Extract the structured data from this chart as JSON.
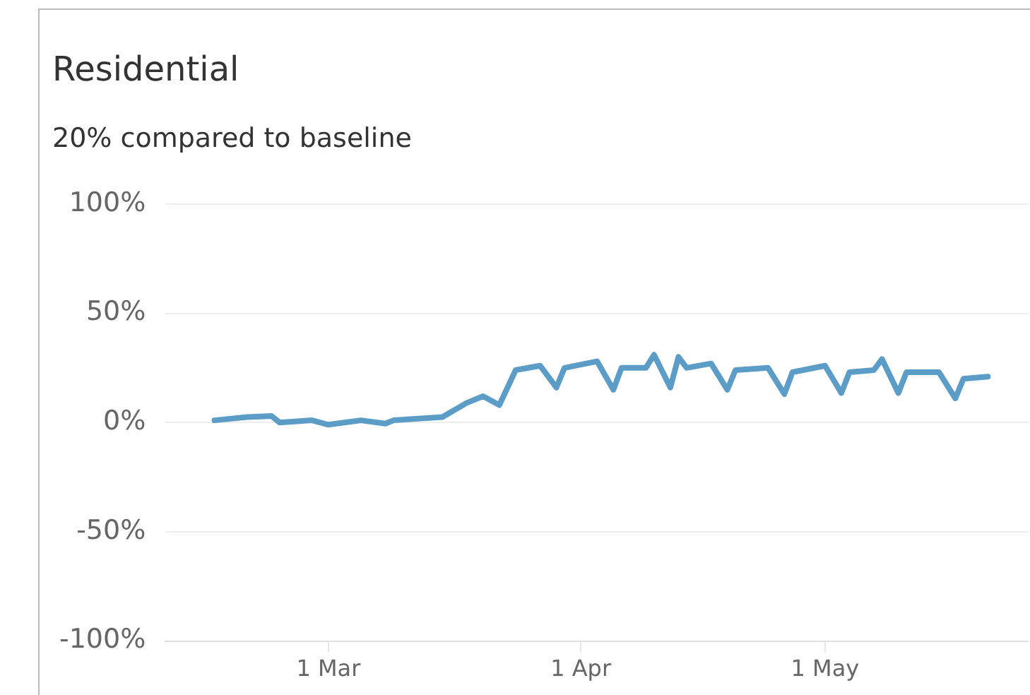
{
  "chart_data": {
    "type": "line",
    "title": "Residential",
    "subtitle": "20% compared to baseline",
    "x": [
      "--02-15",
      "--02-19",
      "--02-22",
      "--02-23",
      "--02-27",
      "--03-01",
      "--03-05",
      "--03-08",
      "--03-09",
      "--03-15",
      "--03-18",
      "--03-20",
      "--03-22",
      "--03-24",
      "--03-27",
      "--03-29",
      "--03-30",
      "--04-03",
      "--04-05",
      "--04-06",
      "--04-09",
      "--04-10",
      "--04-12",
      "--04-13",
      "--04-14",
      "--04-17",
      "--04-19",
      "--04-20",
      "--04-24",
      "--04-26",
      "--04-27",
      "--05-01",
      "--05-03",
      "--05-04",
      "--05-07",
      "--05-08",
      "--05-10",
      "--05-11",
      "--05-15",
      "--05-17",
      "--05-18",
      "--05-21"
    ],
    "series": [
      {
        "color": "#5b9dc6",
        "values": [
          1,
          2.5,
          3,
          0,
          1,
          -1,
          1,
          -0.5,
          1,
          2.5,
          9,
          12,
          8,
          24,
          26,
          16,
          25,
          28,
          15,
          25,
          25,
          31,
          16,
          30,
          25,
          27,
          15,
          24,
          25,
          13,
          23,
          26,
          13.5,
          23,
          24,
          29,
          13.5,
          23,
          23,
          11,
          20,
          21
        ]
      }
    ],
    "xlim": [
      "--02-09",
      "--05-26"
    ],
    "xticks": [
      {
        "value": "--03-01",
        "label": "1 Mar"
      },
      {
        "value": "--04-01",
        "label": "1 Apr"
      },
      {
        "value": "--05-01",
        "label": "1 May"
      }
    ],
    "ylim": [
      -100,
      100
    ],
    "yticks": [
      {
        "value": -100,
        "label": "-100%"
      },
      {
        "value": -50,
        "label": "-50%"
      },
      {
        "value": 0,
        "label": "0%"
      },
      {
        "value": 50,
        "label": "50%"
      },
      {
        "value": 100,
        "label": "100%"
      }
    ],
    "grid": "y",
    "legend": false,
    "marker": "none",
    "line_style": "solid"
  }
}
